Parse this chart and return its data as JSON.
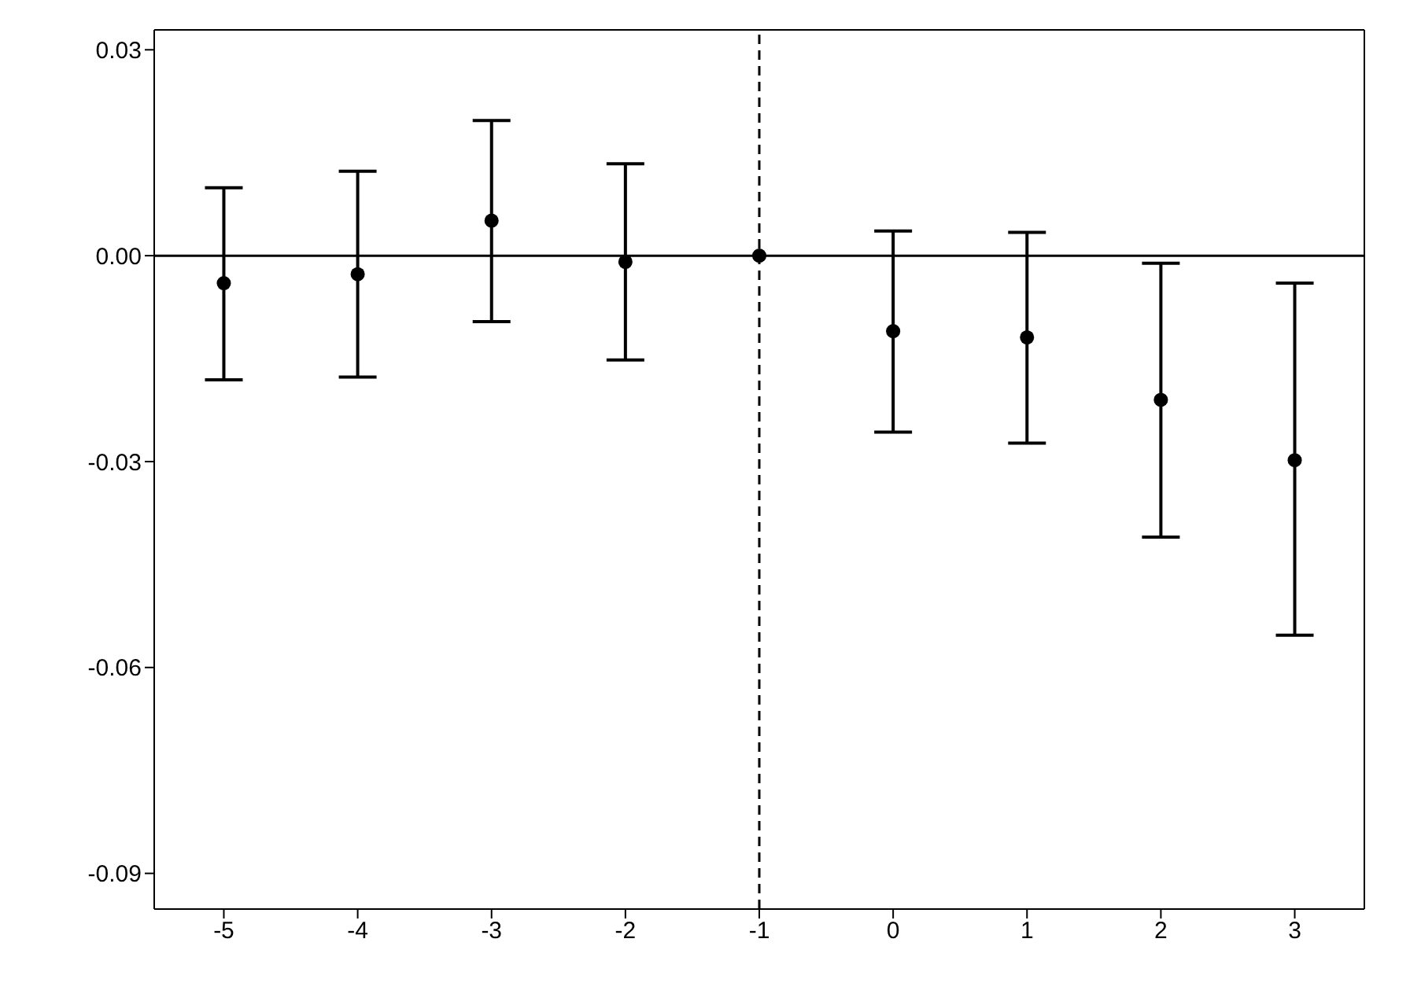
{
  "chart_data": {
    "type": "scatter",
    "x": [
      -5,
      -4,
      -3,
      -2,
      -1,
      0,
      1,
      2,
      3
    ],
    "values": [
      -0.004,
      -0.0027,
      0.0051,
      -0.0009,
      0,
      -0.011,
      -0.0119,
      -0.021,
      -0.0298
    ],
    "errors": [
      [
        -0.0181,
        0.0099
      ],
      [
        -0.0177,
        0.0123
      ],
      [
        -0.0096,
        0.0197
      ],
      [
        -0.0152,
        0.0134
      ],
      null,
      [
        -0.0257,
        0.0036
      ],
      [
        -0.0273,
        0.0034
      ],
      [
        -0.041,
        -0.0011
      ],
      [
        -0.0553,
        -0.004
      ]
    ],
    "color": "#000000",
    "marker": "circle",
    "xlim": [
      -5.52,
      3.52
    ],
    "xticks": [
      -5,
      -4,
      -3,
      -2,
      -1,
      0,
      1,
      2,
      3
    ],
    "ylim": [
      -0.0952,
      0.0329
    ],
    "yticks": [
      {
        "value": 0.03,
        "label": "0.03"
      },
      {
        "value": 0,
        "label": "0.00"
      },
      {
        "value": -0.03,
        "label": "-0.03"
      },
      {
        "value": -0.06,
        "label": "-0.06"
      },
      {
        "value": -0.09,
        "label": "-0.09"
      }
    ],
    "ref_lines": [
      {
        "axis": "x",
        "value": -1,
        "line_style": "dashed",
        "color": "#000000"
      },
      {
        "axis": "y",
        "value": 0,
        "line_style": "solid",
        "color": "#000000"
      }
    ]
  }
}
